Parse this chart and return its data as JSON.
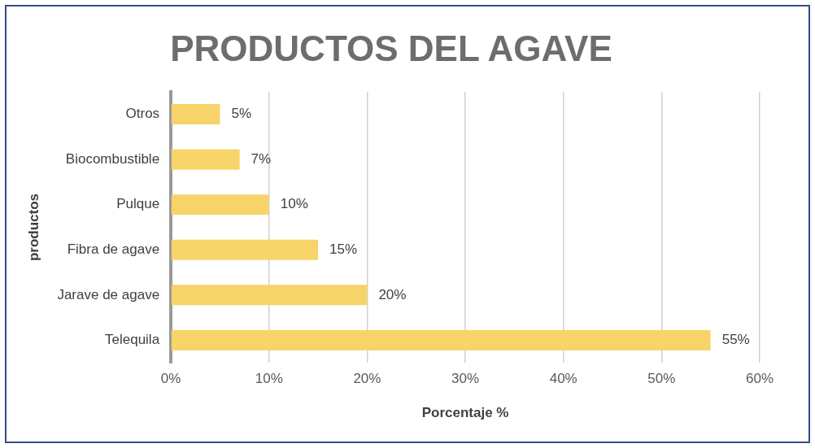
{
  "chart_data": {
    "type": "bar",
    "orientation": "horizontal",
    "title": "PRODUCTOS DEL AGAVE",
    "xlabel": "Porcentaje %",
    "ylabel": "productos",
    "categories": [
      "Otros",
      "Biocombustible",
      "Pulque",
      "Fibra de agave",
      "Jarave de agave",
      "Telequila"
    ],
    "values": [
      5,
      7,
      10,
      15,
      20,
      55
    ],
    "color": "#f7d46a",
    "value_labels": [
      "5%",
      "7%",
      "10%",
      "15%",
      "20%",
      "55%"
    ],
    "xlim": [
      0,
      60
    ],
    "xticks": [
      {
        "value": 0,
        "label": "0%"
      },
      {
        "value": 10,
        "label": "10%"
      },
      {
        "value": 20,
        "label": "20%"
      },
      {
        "value": 30,
        "label": "30%"
      },
      {
        "value": 40,
        "label": "40%"
      },
      {
        "value": 50,
        "label": "50%"
      },
      {
        "value": 60,
        "label": "60%"
      }
    ],
    "grid": "x",
    "legend": false
  }
}
